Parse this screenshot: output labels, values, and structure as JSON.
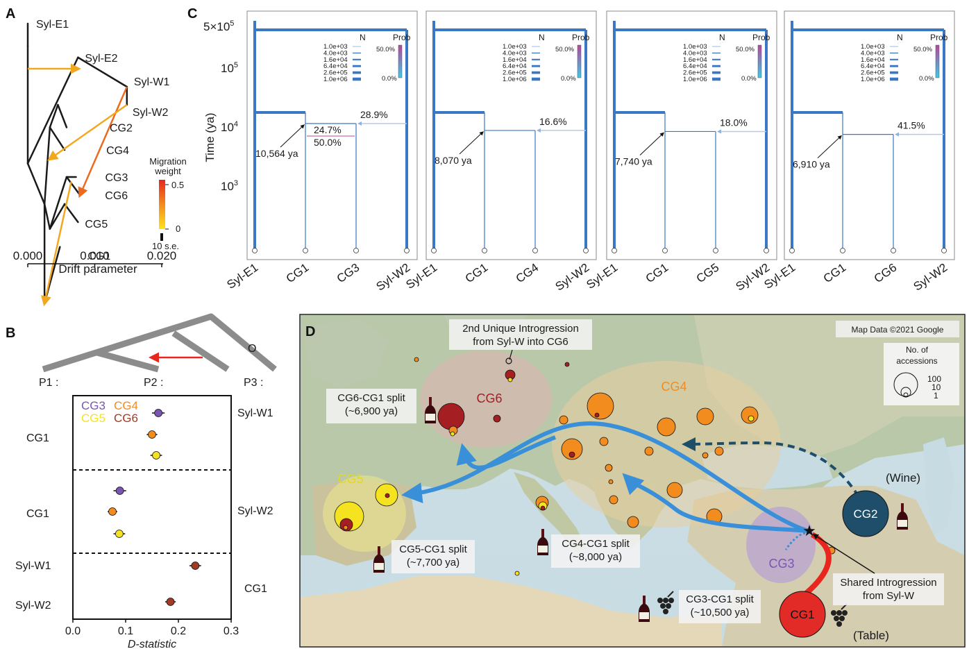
{
  "panels": {
    "a": {
      "letter": "A",
      "tree_nodes": {
        "root": [
          0.0025,
          12.4
        ],
        "a1": [
          0.0,
          1.0
        ],
        "a2": [
          0.0,
          6.2
        ],
        "a3": [
          0.0025,
          8.0
        ],
        "a4": [
          0.0033,
          4.6
        ],
        "a5": [
          0.0033,
          9.1
        ],
        "a6": [
          0.0045,
          3.6
        ],
        "a7": [
          0.0055,
          8.0
        ],
        "a8": [
          0.0058,
          6.8
        ],
        "a9": [
          0.0075,
          1.5
        ],
        "a10": [
          0.0148,
          2.8
        ]
      },
      "tips": [
        {
          "label": "Syl-E1",
          "x": 0.0,
          "y": 0.0
        },
        {
          "label": "Syl-E2",
          "x": 0.0075,
          "y": 1.5
        },
        {
          "label": "Syl-W1",
          "x": 0.0148,
          "y": 2.8
        },
        {
          "label": "Syl-W2",
          "x": 0.0148,
          "y": 3.6
        },
        {
          "label": "CG2",
          "x": 0.0058,
          "y": 4.6
        },
        {
          "label": "CG4",
          "x": 0.0055,
          "y": 5.6
        },
        {
          "label": "CG3",
          "x": 0.0072,
          "y": 6.8
        },
        {
          "label": "CG6",
          "x": 0.0078,
          "y": 7.6
        },
        {
          "label": "CG5",
          "x": 0.0075,
          "y": 8.8
        },
        {
          "label": "CG1",
          "x": 0.0048,
          "y": 9.9
        }
      ],
      "tip_label_offsets": {
        "Syl-E1": [
          12,
          0
        ],
        "Syl-E2": [
          10,
          0
        ],
        "Syl-W1": [
          10,
          -8
        ],
        "Syl-W2": [
          8,
          10
        ],
        "CG2": [
          62,
          0
        ],
        "CG4": [
          60,
          0
        ],
        "CG3": [
          42,
          0
        ],
        "CG6": [
          36,
          0
        ],
        "CG5": [
          10,
          2
        ],
        "CG1": [
          40,
          12
        ]
      },
      "migrations": [
        {
          "from": [
            0.0,
            2.0
          ],
          "to": [
            0.0075,
            2.0
          ],
          "weight": 0.15
        },
        {
          "from": [
            0.0148,
            2.8
          ],
          "to": [
            0.0078,
            7.6
          ],
          "weight": 0.35
        },
        {
          "from": [
            0.0148,
            3.6
          ],
          "to": [
            0.0033,
            6.0
          ],
          "weight": 0.2
        },
        {
          "from": [
            0.0065,
            7.0
          ],
          "to": [
            0.0025,
            12.4
          ],
          "weight": 0.25
        }
      ],
      "x_ticks": [
        "0.000",
        "0.010",
        "0.020"
      ],
      "x_domain": [
        0.0,
        0.02
      ],
      "xlabel": "Drift parameter",
      "legend_title": "Migration\nweight",
      "legend_ticks": [
        "0.5",
        "0"
      ],
      "legend_se": "10 s.e.",
      "colors": {
        "tree": "#1a1a1a",
        "low": "#f2c419",
        "high": "#e8531e"
      }
    },
    "b": {
      "letter": "B",
      "topology_labels": [
        "P1 :",
        "P2 :",
        "P3 :",
        "O"
      ],
      "legend_items": [
        {
          "label": "CG3",
          "color": "#7a56b0"
        },
        {
          "label": "CG4",
          "color": "#f28c1e"
        },
        {
          "label": "CG5",
          "color": "#f5e31f"
        },
        {
          "label": "CG6",
          "color": "#a23a24"
        }
      ],
      "groups": [
        {
          "p1": "CG1",
          "p3": "Syl-W1",
          "points": [
            {
              "value": 0.162,
              "err": 0.012,
              "color": "#7a56b0"
            },
            {
              "value": 0.15,
              "err": 0.01,
              "color": "#f28c1e"
            },
            {
              "value": 0.158,
              "err": 0.011,
              "color": "#f5e31f"
            }
          ]
        },
        {
          "p1": "CG1",
          "p3": "Syl-W2",
          "points": [
            {
              "value": 0.089,
              "err": 0.012,
              "color": "#7a56b0"
            },
            {
              "value": 0.075,
              "err": 0.009,
              "color": "#f28c1e"
            },
            {
              "value": 0.088,
              "err": 0.011,
              "color": "#f5e31f"
            }
          ]
        },
        {
          "p1_list": [
            "Syl-W1",
            "Syl-W2"
          ],
          "p3": "CG1",
          "points": [
            {
              "value": 0.232,
              "err": 0.011,
              "color": "#a23a24"
            },
            {
              "value": 0.185,
              "err": 0.01,
              "color": "#a23a24"
            }
          ]
        }
      ],
      "x_ticks": [
        "0.0",
        "0.1",
        "0.2",
        "0.3"
      ],
      "x_domain": [
        0.0,
        0.3
      ],
      "xlabel": "D-statistic"
    },
    "c": {
      "letter": "C",
      "ylabel": "Time (ya)",
      "y_ticks": [
        "5×10",
        "10",
        "10",
        "10"
      ],
      "y_tick_sups": [
        "5",
        "5",
        "4",
        "3"
      ],
      "legend": {
        "n_title": "N",
        "prob_title": "Prob",
        "n_values": [
          "1.0e+03",
          "4.0e+03",
          "1.6e+04",
          "6.4e+04",
          "2.6e+05",
          "1.0e+06"
        ],
        "prob_ticks": [
          "50.0%",
          "0.0%"
        ]
      },
      "subplots": [
        {
          "taxa": [
            "Syl-E1",
            "CG1",
            "CG3",
            "Syl-W2"
          ],
          "split_time": 10564,
          "split_label": "10,564 ya",
          "migration_pct": "28.9%",
          "extra_pct": [
            "24.7%",
            "50.0%"
          ]
        },
        {
          "taxa": [
            "Syl-E1",
            "CG1",
            "CG4",
            "Syl-W2"
          ],
          "split_time": 8070,
          "split_label": "8,070 ya",
          "migration_pct": "16.6%"
        },
        {
          "taxa": [
            "Syl-E1",
            "CG1",
            "CG5",
            "Syl-W2"
          ],
          "split_time": 7740,
          "split_label": "7,740 ya",
          "migration_pct": "18.0%"
        },
        {
          "taxa": [
            "Syl-E1",
            "CG1",
            "CG6",
            "Syl-W2"
          ],
          "split_time": 6910,
          "split_label": "6,910 ya",
          "migration_pct": "41.5%"
        }
      ],
      "tick_leftpad_legend_note": "",
      "colors": {
        "branch": "#3a78c3",
        "prob_top": "#b5479b",
        "prob_bottom": "#3fc9e6"
      }
    },
    "d": {
      "letter": "D",
      "copyright": "Map Data ©2021 Google",
      "size_legend": {
        "title": "No. of\naccessions",
        "values": [
          "100",
          "10",
          "1"
        ]
      },
      "regions": [
        {
          "label": "CG6",
          "color": "#a41e22"
        },
        {
          "label": "CG4",
          "color": "#f28c1e"
        },
        {
          "label": "CG5",
          "color": "#f5e31f"
        },
        {
          "label": "CG3",
          "color": "#7a56b0"
        },
        {
          "label": "CG2",
          "color": "#1f4e6b"
        },
        {
          "label": "CG1",
          "color": "#e22b26"
        }
      ],
      "annotations": {
        "intro_top": "2nd Unique Introgression\nfrom Syl-W into CG6",
        "cg6_split": "CG6-CG1 split\n(~6,900 ya)",
        "cg5_split": "CG5-CG1 split\n(~7,700 ya)",
        "cg4_split": "CG4-CG1 split\n(~8,000 ya)",
        "cg3_split": "CG3-CG1 split\n(~10,500 ya)",
        "shared": "Shared Introgression\nfrom Syl-W",
        "wine": "(Wine)",
        "table": "(Table)"
      }
    }
  }
}
